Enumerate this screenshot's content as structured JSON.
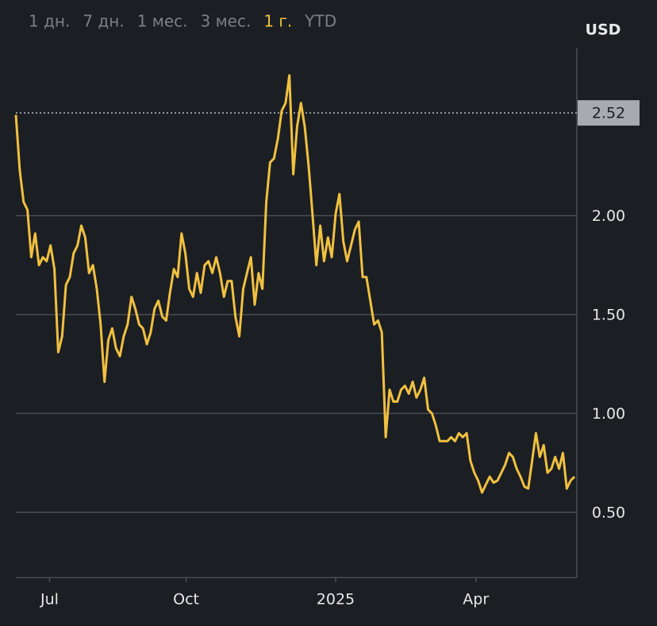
{
  "chart_data": {
    "type": "line",
    "range_buttons": [
      "1 дн.",
      "7 дн.",
      "1 мес.",
      "3 мес.",
      "1 г.",
      "YTD"
    ],
    "active_range": "1 г.",
    "y_unit": "USD",
    "color": "#f0c040",
    "values": [
      2.51,
      2.23,
      2.07,
      2.03,
      1.79,
      1.91,
      1.75,
      1.79,
      1.77,
      1.85,
      1.73,
      1.31,
      1.39,
      1.65,
      1.69,
      1.81,
      1.85,
      1.95,
      1.89,
      1.71,
      1.75,
      1.63,
      1.45,
      1.16,
      1.37,
      1.43,
      1.33,
      1.29,
      1.39,
      1.45,
      1.59,
      1.53,
      1.45,
      1.43,
      1.35,
      1.41,
      1.53,
      1.57,
      1.49,
      1.47,
      1.61,
      1.73,
      1.69,
      1.91,
      1.81,
      1.63,
      1.59,
      1.71,
      1.61,
      1.75,
      1.77,
      1.71,
      1.79,
      1.71,
      1.59,
      1.67,
      1.67,
      1.49,
      1.39,
      1.63,
      1.71,
      1.79,
      1.55,
      1.71,
      1.63,
      2.07,
      2.27,
      2.29,
      2.39,
      2.53,
      2.57,
      2.71,
      2.21,
      2.45,
      2.57,
      2.45,
      2.25,
      2.01,
      1.75,
      1.95,
      1.77,
      1.89,
      1.79,
      2.01,
      2.11,
      1.87,
      1.77,
      1.85,
      1.93,
      1.97,
      1.69,
      1.69,
      1.57,
      1.45,
      1.47,
      1.41,
      0.88,
      1.12,
      1.06,
      1.06,
      1.12,
      1.14,
      1.1,
      1.16,
      1.08,
      1.12,
      1.18,
      1.02,
      1.0,
      0.94,
      0.86,
      0.86,
      0.86,
      0.88,
      0.86,
      0.9,
      0.88,
      0.9,
      0.76,
      0.7,
      0.66,
      0.6,
      0.64,
      0.68,
      0.65,
      0.66,
      0.7,
      0.74,
      0.8,
      0.78,
      0.72,
      0.68,
      0.63,
      0.62,
      0.76,
      0.9,
      0.78,
      0.84,
      0.7,
      0.72,
      0.78,
      0.72,
      0.8,
      0.62,
      0.66,
      0.68
    ],
    "xlim": [
      0,
      145
    ],
    "xticks": [
      {
        "value": 8.75,
        "label": "Jul"
      },
      {
        "value": 44.2,
        "label": "Oct"
      },
      {
        "value": 83,
        "label": "2025"
      },
      {
        "value": 119.4,
        "label": "Apr"
      }
    ],
    "ylim": [
      0.17,
      2.85
    ],
    "yticks": [
      {
        "value": 0.5,
        "label": "0.50"
      },
      {
        "value": 1,
        "label": "1.00"
      },
      {
        "value": 1.5,
        "label": "1.50"
      },
      {
        "value": 2,
        "label": "2.00"
      }
    ],
    "reference": 2.52,
    "grid": true
  }
}
